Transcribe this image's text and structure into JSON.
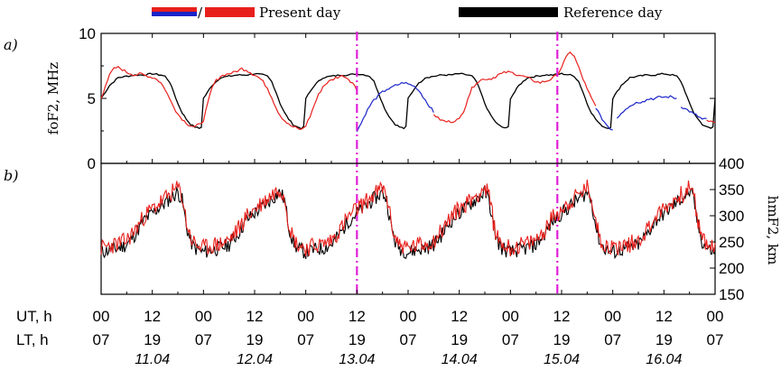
{
  "legend": {
    "present_label": "Present day",
    "reference_label": "Reference day",
    "separator": "/"
  },
  "colors": {
    "present": "#e8201c",
    "present_alt": "#1a24c8",
    "reference": "#000000",
    "event_line": "#e020d8"
  },
  "chart_data": [
    {
      "type": "line",
      "panel_label": "a)",
      "ylabel": "foF2, MHz",
      "xlim": [
        0,
        144
      ],
      "ylim": [
        0,
        10
      ],
      "yticks": [
        0,
        5,
        10
      ],
      "x_unit": "UT hours from 11.04 00 UT",
      "event_lines_x": [
        60,
        107
      ],
      "reference_profile": [
        [
          0,
          5.0
        ],
        [
          1,
          5.5
        ],
        [
          2,
          6.0
        ],
        [
          3,
          6.3
        ],
        [
          4,
          6.6
        ],
        [
          6,
          6.7
        ],
        [
          8,
          6.8
        ],
        [
          10,
          6.8
        ],
        [
          12,
          6.9
        ],
        [
          14,
          6.8
        ],
        [
          15,
          6.7
        ],
        [
          16,
          6.3
        ],
        [
          17,
          5.5
        ],
        [
          18,
          4.6
        ],
        [
          19,
          3.9
        ],
        [
          20,
          3.4
        ],
        [
          21,
          3.0
        ],
        [
          22,
          2.8
        ],
        [
          23,
          2.7
        ],
        [
          24,
          2.9
        ]
      ],
      "series": [
        {
          "name": "Present day",
          "segments": [
            {
              "color": "red",
              "points": [
                [
                  0,
                  5.0
                ],
                [
                  1,
                  6.0
                ],
                [
                  2,
                  6.8
                ],
                [
                  3,
                  7.3
                ],
                [
                  4,
                  7.4
                ],
                [
                  5,
                  7.2
                ],
                [
                  6,
                  7.0
                ],
                [
                  7,
                  6.9
                ],
                [
                  8,
                  6.8
                ],
                [
                  9,
                  6.9
                ],
                [
                  10,
                  6.8
                ],
                [
                  11,
                  6.7
                ],
                [
                  12,
                  6.6
                ],
                [
                  13,
                  6.5
                ],
                [
                  14,
                  6.2
                ],
                [
                  15,
                  5.7
                ],
                [
                  16,
                  5.0
                ],
                [
                  17,
                  4.4
                ],
                [
                  18,
                  3.8
                ],
                [
                  19,
                  3.4
                ],
                [
                  20,
                  3.1
                ],
                [
                  21,
                  2.9
                ],
                [
                  22,
                  2.8
                ],
                [
                  23,
                  3.0
                ],
                [
                  24,
                  3.3
                ],
                [
                  25,
                  4.6
                ],
                [
                  26,
                  5.8
                ],
                [
                  27,
                  6.4
                ],
                [
                  28,
                  6.7
                ],
                [
                  29,
                  6.8
                ],
                [
                  30,
                  6.9
                ],
                [
                  31,
                  7.0
                ],
                [
                  32,
                  7.1
                ],
                [
                  33,
                  7.3
                ],
                [
                  34,
                  7.2
                ],
                [
                  35,
                  7.0
                ],
                [
                  36,
                  6.8
                ],
                [
                  37,
                  6.6
                ],
                [
                  38,
                  6.3
                ],
                [
                  39,
                  5.8
                ],
                [
                  40,
                  5.1
                ],
                [
                  41,
                  4.3
                ],
                [
                  42,
                  3.7
                ],
                [
                  43,
                  3.3
                ],
                [
                  44,
                  3.0
                ],
                [
                  45,
                  2.8
                ],
                [
                  46,
                  2.7
                ],
                [
                  47,
                  2.6
                ],
                [
                  48,
                  2.9
                ],
                [
                  49,
                  3.6
                ],
                [
                  50,
                  4.5
                ],
                [
                  51,
                  5.3
                ],
                [
                  52,
                  5.9
                ],
                [
                  53,
                  6.2
                ],
                [
                  54,
                  6.4
                ],
                [
                  55,
                  6.6
                ],
                [
                  56,
                  6.7
                ],
                [
                  57,
                  6.7
                ],
                [
                  58,
                  6.5
                ],
                [
                  59,
                  6.2
                ],
                [
                  60,
                  5.6
                ]
              ]
            },
            {
              "color": "blue",
              "points": [
                [
                  60,
                  2.5
                ],
                [
                  61,
                  3.1
                ],
                [
                  62,
                  3.8
                ],
                [
                  63,
                  4.4
                ],
                [
                  64,
                  4.9
                ],
                [
                  65,
                  5.2
                ],
                [
                  66,
                  5.5
                ],
                [
                  67,
                  5.7
                ],
                [
                  68,
                  5.8
                ],
                [
                  69,
                  6.0
                ],
                [
                  70,
                  6.1
                ],
                [
                  71,
                  6.2
                ],
                [
                  72,
                  6.1
                ],
                [
                  73,
                  6.0
                ],
                [
                  74,
                  5.8
                ],
                [
                  75,
                  5.4
                ],
                [
                  76,
                  4.9
                ],
                [
                  77,
                  4.4
                ],
                [
                  78,
                  3.9
                ]
              ]
            },
            {
              "color": "red",
              "points": [
                [
                  78,
                  3.8
                ],
                [
                  79,
                  3.5
                ],
                [
                  80,
                  3.3
                ],
                [
                  81,
                  3.2
                ],
                [
                  82,
                  3.2
                ],
                [
                  83,
                  3.3
                ],
                [
                  84,
                  3.4
                ],
                [
                  85,
                  4.0
                ],
                [
                  86,
                  5.0
                ],
                [
                  87,
                  5.8
                ],
                [
                  88,
                  6.2
                ],
                [
                  89,
                  6.4
                ],
                [
                  90,
                  6.5
                ],
                [
                  91,
                  6.5
                ],
                [
                  92,
                  6.6
                ],
                [
                  93,
                  6.8
                ],
                [
                  94,
                  6.9
                ],
                [
                  95,
                  7.0
                ],
                [
                  96,
                  7.0
                ],
                [
                  97,
                  6.9
                ],
                [
                  98,
                  6.8
                ],
                [
                  99,
                  6.7
                ],
                [
                  100,
                  6.6
                ],
                [
                  101,
                  6.4
                ],
                [
                  102,
                  6.3
                ],
                [
                  103,
                  6.2
                ],
                [
                  104,
                  6.3
                ],
                [
                  105,
                  6.4
                ],
                [
                  106,
                  6.6
                ],
                [
                  107,
                  6.8
                ],
                [
                  108,
                  7.4
                ],
                [
                  109,
                  8.1
                ],
                [
                  110,
                  8.6
                ],
                [
                  111,
                  8.2
                ],
                [
                  112,
                  7.4
                ],
                [
                  113,
                  6.5
                ],
                [
                  114,
                  5.7
                ],
                [
                  115,
                  5.0
                ],
                [
                  116,
                  4.4
                ]
              ]
            },
            {
              "color": "blue",
              "points": [
                [
                  116,
                  4.3
                ],
                [
                  117,
                  3.7
                ],
                [
                  118,
                  3.2
                ],
                [
                  119,
                  2.8
                ],
                [
                  120,
                  2.6
                ]
              ]
            },
            {
              "color": "blue",
              "points": [
                [
                  121,
                  3.5
                ],
                [
                  122,
                  3.9
                ],
                [
                  123,
                  4.2
                ],
                [
                  124,
                  4.4
                ],
                [
                  125,
                  4.6
                ],
                [
                  126,
                  4.7
                ],
                [
                  127,
                  4.8
                ],
                [
                  128,
                  4.9
                ],
                [
                  129,
                  5.0
                ],
                [
                  130,
                  5.0
                ],
                [
                  131,
                  5.1
                ],
                [
                  132,
                  5.1
                ],
                [
                  133,
                  5.1
                ],
                [
                  134,
                  5.1
                ],
                [
                  135,
                  5.0
                ]
              ]
            },
            {
              "color": "blue",
              "points": [
                [
                  136,
                  4.4
                ],
                [
                  137,
                  4.2
                ],
                [
                  138,
                  4.0
                ],
                [
                  139,
                  3.8
                ],
                [
                  140,
                  3.6
                ],
                [
                  141,
                  3.4
                ],
                [
                  142,
                  3.4
                ]
              ]
            },
            {
              "color": "red",
              "points": [
                [
                  142,
                  3.3
                ],
                [
                  143,
                  3.2
                ],
                [
                  144,
                  3.1
                ],
                [
                  145,
                  3.0
                ],
                [
                  146,
                  3.1
                ],
                [
                  147,
                  3.2
                ],
                [
                  148,
                  3.2
                ],
                [
                  149,
                  3.3
                ],
                [
                  150,
                  3.3
                ]
              ]
            }
          ]
        },
        {
          "name": "Reference day",
          "color": "black",
          "profile_repeat_hours": 24,
          "x_range": [
            0,
            144
          ]
        }
      ]
    },
    {
      "type": "line",
      "panel_label": "b)",
      "ylabel": "hmF2, km",
      "xlim": [
        0,
        144
      ],
      "ylim": [
        150,
        400
      ],
      "yticks": [
        150,
        200,
        250,
        300,
        350,
        400
      ],
      "reference_profile": [
        [
          0,
          230
        ],
        [
          2,
          235
        ],
        [
          4,
          238
        ],
        [
          6,
          245
        ],
        [
          8,
          265
        ],
        [
          10,
          290
        ],
        [
          12,
          305
        ],
        [
          14,
          318
        ],
        [
          16,
          332
        ],
        [
          18,
          345
        ],
        [
          19,
          330
        ],
        [
          20,
          280
        ],
        [
          21,
          250
        ],
        [
          22,
          238
        ],
        [
          24,
          230
        ]
      ],
      "series": [
        {
          "name": "Present day",
          "color": "red",
          "profile_offset_km": 8
        },
        {
          "name": "Reference day",
          "color": "black",
          "profile_offset_km": 0
        }
      ]
    }
  ],
  "x_axis": {
    "ut_label": "UT, h",
    "lt_label": "LT, h",
    "ut_ticks": [
      "00",
      "12",
      "00",
      "12",
      "00",
      "12",
      "00",
      "12",
      "00",
      "12",
      "00",
      "12",
      "00"
    ],
    "lt_ticks": [
      "07",
      "19",
      "07",
      "19",
      "07",
      "19",
      "07",
      "19",
      "07",
      "19",
      "07",
      "19",
      "07"
    ],
    "dates": [
      "11.04",
      "12.04",
      "13.04",
      "14.04",
      "15.04",
      "16.04"
    ]
  }
}
